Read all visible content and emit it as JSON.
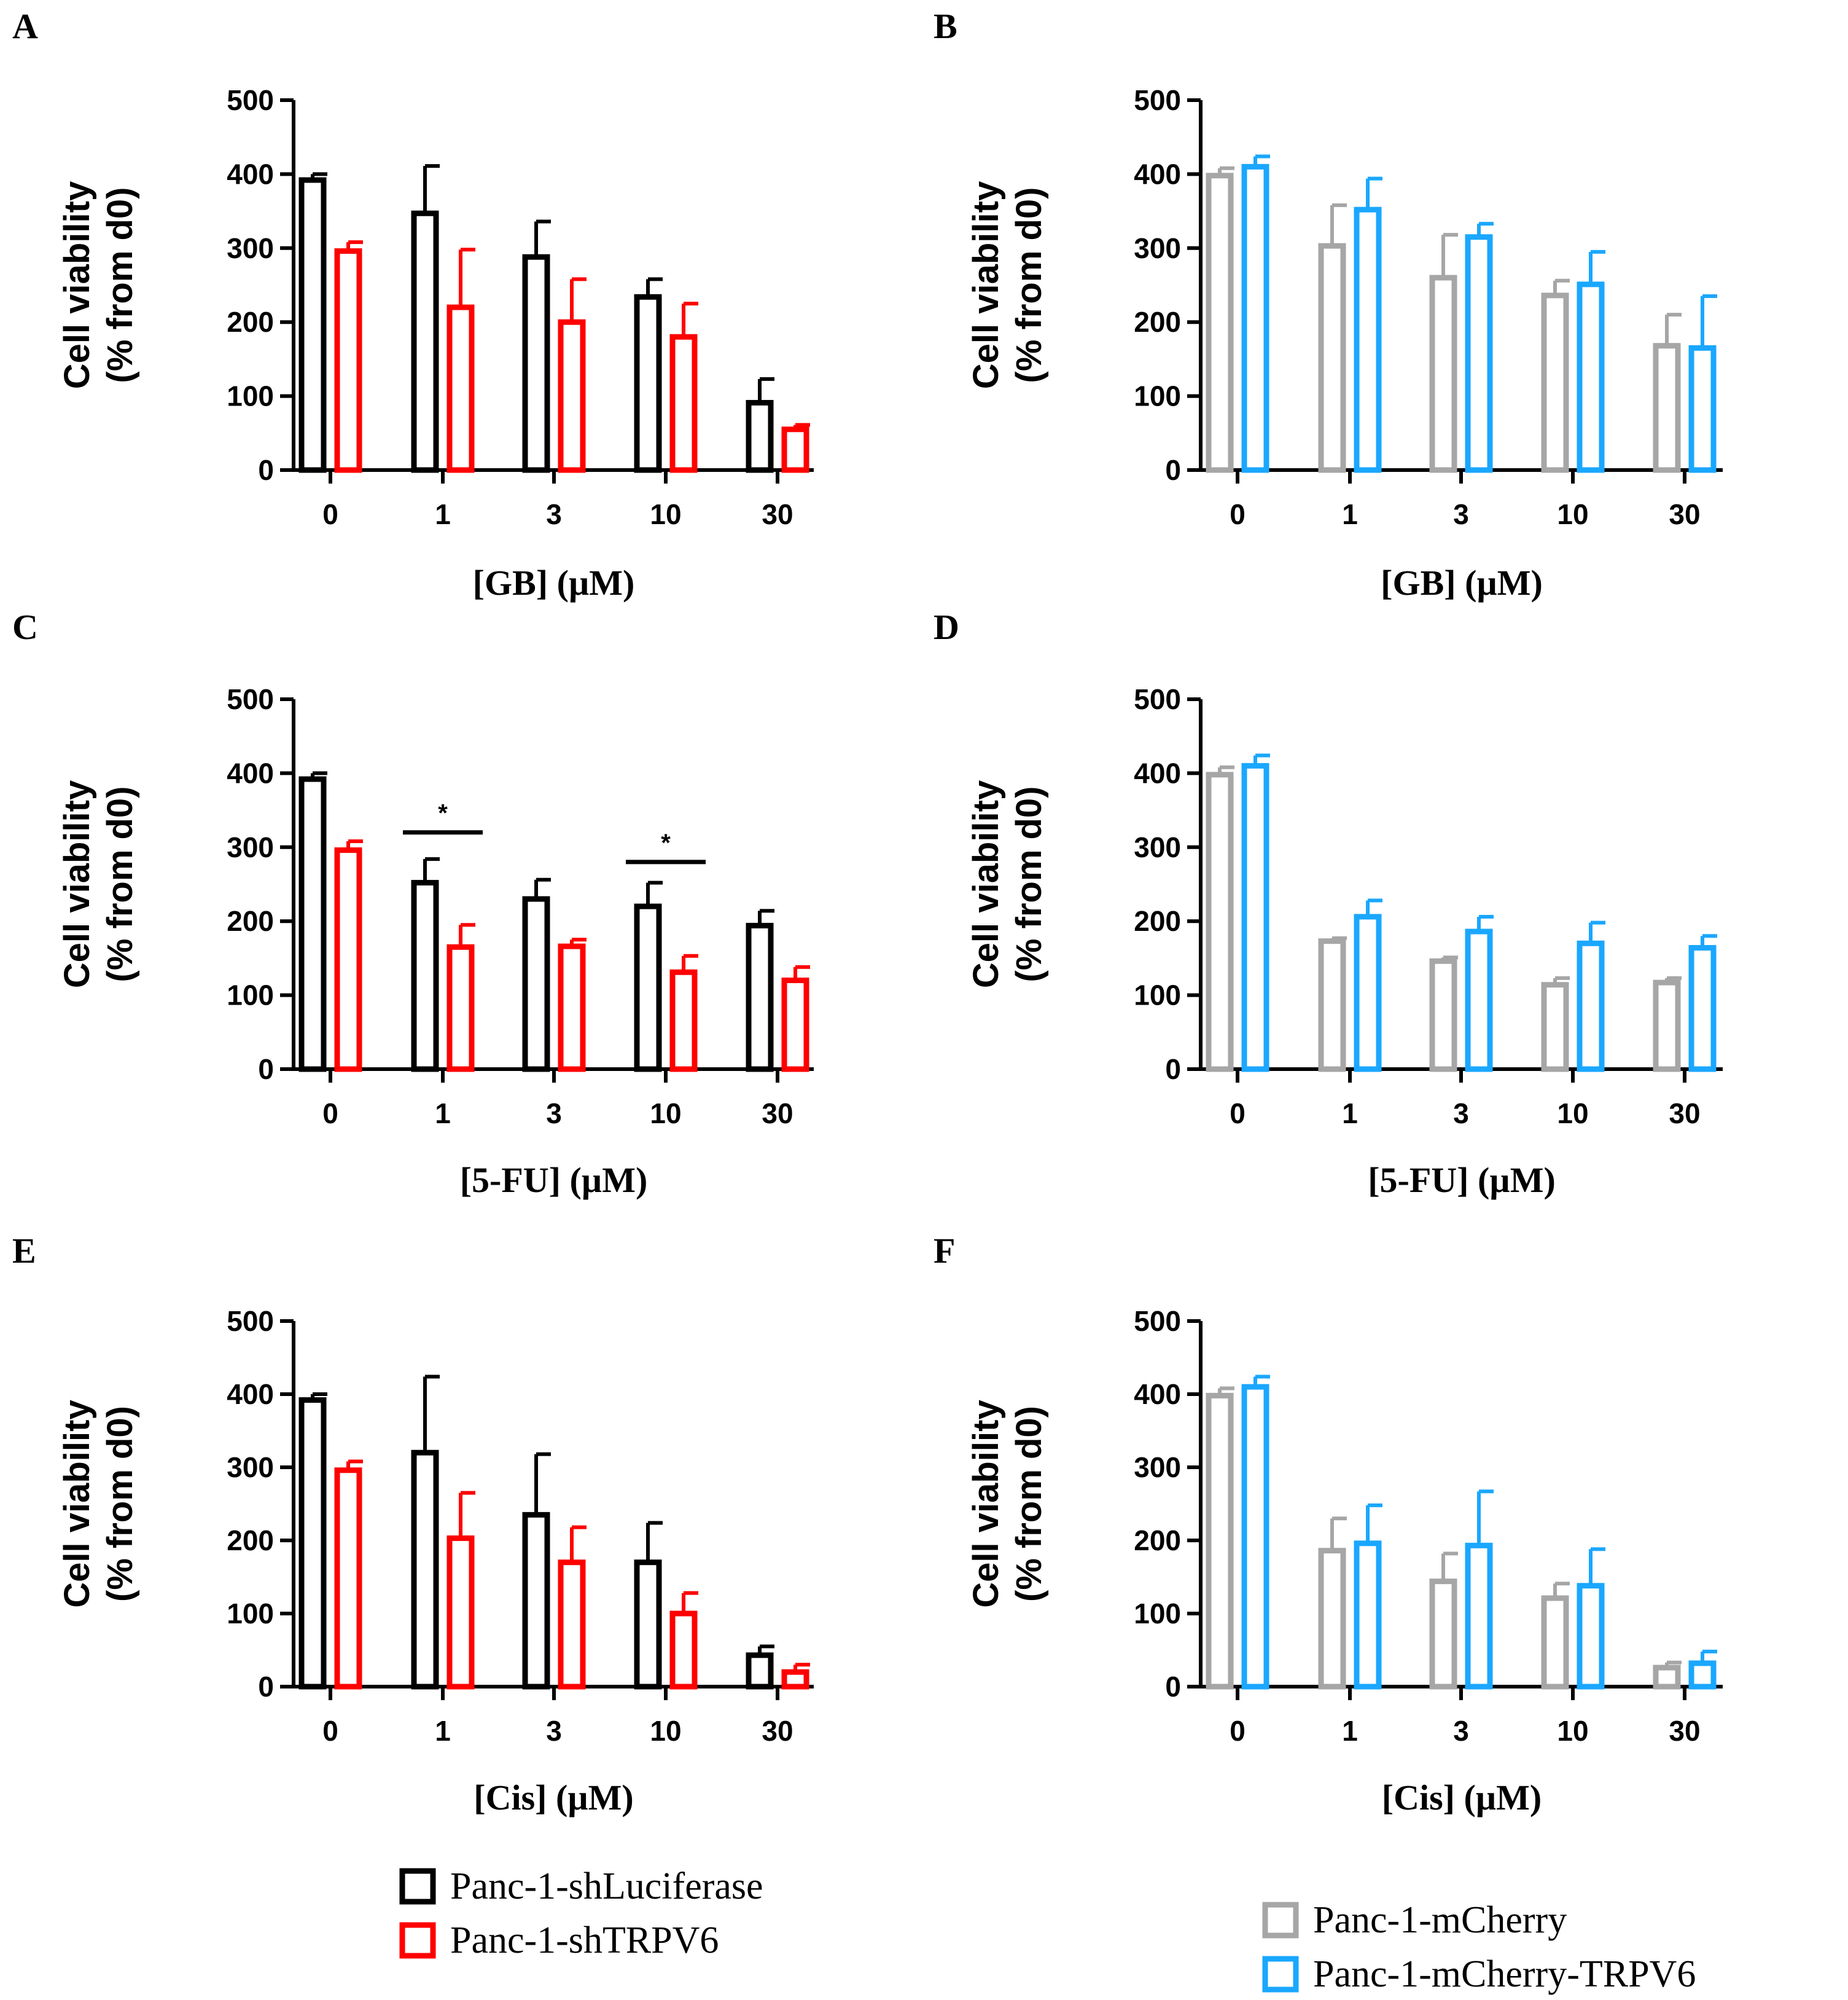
{
  "chart_data": [
    {
      "type": "bar",
      "panel_label": "A",
      "categories": [
        "0",
        "1",
        "3",
        "10",
        "30"
      ],
      "xlabel": "[GB] (µM)",
      "ylabel": [
        "Cell viability",
        "(% from d0)"
      ],
      "ylim": [
        0,
        500
      ],
      "yticks": [
        "0",
        "100",
        "200",
        "300",
        "400",
        "500"
      ],
      "series": [
        {
          "name": "Panc-1-shLuciferase",
          "color": "#000000",
          "values": [
            392,
            347,
            288,
            234,
            91
          ],
          "errors": [
            8,
            64,
            48,
            24,
            32
          ]
        },
        {
          "name": "Panc-1-shTRPV6",
          "color": "#ff0000",
          "values": [
            296,
            220,
            200,
            180,
            55
          ],
          "errors": [
            12,
            78,
            58,
            45,
            6
          ]
        }
      ],
      "annotations": []
    },
    {
      "type": "bar",
      "panel_label": "B",
      "categories": [
        "0",
        "1",
        "3",
        "10",
        "30"
      ],
      "xlabel": "[GB] (µM)",
      "ylabel": [
        "Cell viability",
        "(% from d0)"
      ],
      "ylim": [
        0,
        500
      ],
      "yticks": [
        "0",
        "100",
        "200",
        "300",
        "400",
        "500"
      ],
      "series": [
        {
          "name": "Panc-1-mCherry",
          "color": "#a6a6a6",
          "values": [
            398,
            303,
            260,
            236,
            168
          ],
          "errors": [
            10,
            55,
            58,
            20,
            42
          ]
        },
        {
          "name": "Panc-1-mCherry-TRPV6",
          "color": "#1aa7ff",
          "values": [
            410,
            352,
            315,
            251,
            165
          ],
          "errors": [
            14,
            42,
            18,
            44,
            70
          ]
        }
      ],
      "annotations": []
    },
    {
      "type": "bar",
      "panel_label": "C",
      "categories": [
        "0",
        "1",
        "3",
        "10",
        "30"
      ],
      "xlabel": "[5-FU] (µM)",
      "ylabel": [
        "Cell viability",
        "(% from d0)"
      ],
      "ylim": [
        0,
        500
      ],
      "yticks": [
        "0",
        "100",
        "200",
        "300",
        "400",
        "500"
      ],
      "series": [
        {
          "name": "Panc-1-shLuciferase",
          "color": "#000000",
          "values": [
            392,
            252,
            230,
            220,
            194
          ],
          "errors": [
            8,
            32,
            26,
            32,
            20
          ]
        },
        {
          "name": "Panc-1-shTRPV6",
          "color": "#ff0000",
          "values": [
            296,
            165,
            166,
            131,
            120
          ],
          "errors": [
            12,
            30,
            9,
            22,
            18
          ]
        }
      ],
      "annotations": [
        {
          "text": "*",
          "category": "1",
          "y": 320
        },
        {
          "text": "*",
          "category": "10",
          "y": 280
        }
      ]
    },
    {
      "type": "bar",
      "panel_label": "D",
      "categories": [
        "0",
        "1",
        "3",
        "10",
        "30"
      ],
      "xlabel": "[5-FU] (µM)",
      "ylabel": [
        "Cell viability",
        "(% from d0)"
      ],
      "ylim": [
        0,
        500
      ],
      "yticks": [
        "0",
        "100",
        "200",
        "300",
        "400",
        "500"
      ],
      "series": [
        {
          "name": "Panc-1-mCherry",
          "color": "#a6a6a6",
          "values": [
            398,
            173,
            146,
            114,
            117
          ],
          "errors": [
            10,
            4,
            5,
            9,
            6
          ]
        },
        {
          "name": "Panc-1-mCherry-TRPV6",
          "color": "#1aa7ff",
          "values": [
            410,
            206,
            186,
            170,
            164
          ],
          "errors": [
            14,
            22,
            20,
            28,
            16
          ]
        }
      ],
      "annotations": []
    },
    {
      "type": "bar",
      "panel_label": "E",
      "categories": [
        "0",
        "1",
        "3",
        "10",
        "30"
      ],
      "xlabel": "[Cis] (µM)",
      "ylabel": [
        "Cell viability",
        "(% from d0)"
      ],
      "ylim": [
        0,
        500
      ],
      "yticks": [
        "0",
        "100",
        "200",
        "300",
        "400",
        "500"
      ],
      "series": [
        {
          "name": "Panc-1-shLuciferase",
          "color": "#000000",
          "values": [
            392,
            320,
            235,
            170,
            43
          ],
          "errors": [
            8,
            104,
            83,
            54,
            12
          ]
        },
        {
          "name": "Panc-1-shTRPV6",
          "color": "#ff0000",
          "values": [
            296,
            203,
            170,
            100,
            20
          ],
          "errors": [
            12,
            62,
            48,
            28,
            10
          ]
        }
      ],
      "annotations": []
    },
    {
      "type": "bar",
      "panel_label": "F",
      "categories": [
        "0",
        "1",
        "3",
        "10",
        "30"
      ],
      "xlabel": "[Cis] (µM)",
      "ylabel": [
        "Cell viability",
        "(% from d0)"
      ],
      "ylim": [
        0,
        500
      ],
      "yticks": [
        "0",
        "100",
        "200",
        "300",
        "400",
        "500"
      ],
      "series": [
        {
          "name": "Panc-1-mCherry",
          "color": "#a6a6a6",
          "values": [
            398,
            186,
            144,
            121,
            26
          ],
          "errors": [
            10,
            44,
            38,
            20,
            7
          ]
        },
        {
          "name": "Panc-1-mCherry-TRPV6",
          "color": "#1aa7ff",
          "values": [
            410,
            196,
            193,
            138,
            32
          ],
          "errors": [
            14,
            52,
            74,
            50,
            16
          ]
        }
      ],
      "annotations": []
    }
  ],
  "legends": {
    "left": [
      {
        "label": "Panc-1-shLuciferase",
        "color": "#000000"
      },
      {
        "label": "Panc-1-shTRPV6",
        "color": "#ff0000"
      }
    ],
    "right": [
      {
        "label": "Panc-1-mCherry",
        "color": "#a6a6a6"
      },
      {
        "label": "Panc-1-mCherry-TRPV6",
        "color": "#1aa7ff"
      }
    ]
  }
}
